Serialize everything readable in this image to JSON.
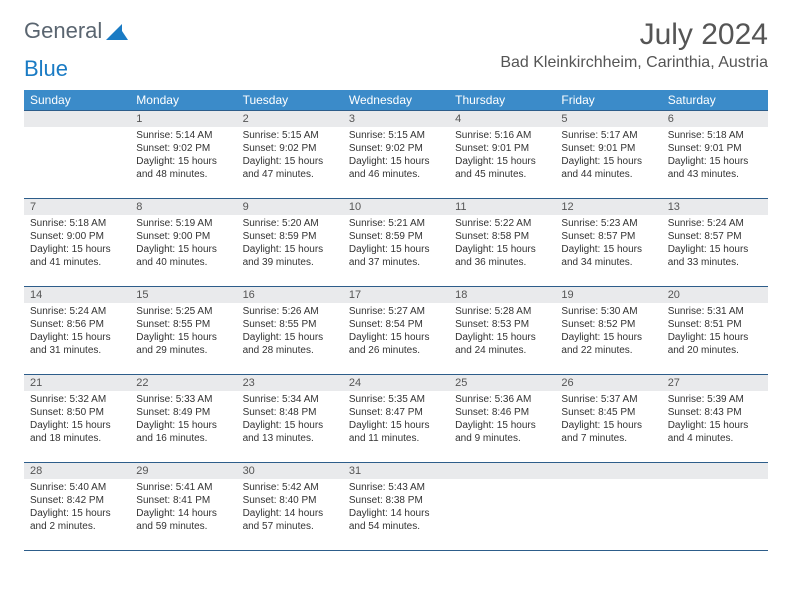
{
  "logo": {
    "text1": "General",
    "text2": "Blue"
  },
  "title": "July 2024",
  "location": "Bad Kleinkirchheim, Carinthia, Austria",
  "colors": {
    "header_bg": "#3b8bc9",
    "header_text": "#ffffff",
    "daynum_bg": "#e9eaec",
    "border": "#2d5d8a",
    "logo_gray": "#5a6570",
    "logo_blue": "#1a7bc4"
  },
  "weekdays": [
    "Sunday",
    "Monday",
    "Tuesday",
    "Wednesday",
    "Thursday",
    "Friday",
    "Saturday"
  ],
  "weeks": [
    {
      "nums": [
        "",
        "1",
        "2",
        "3",
        "4",
        "5",
        "6"
      ],
      "cells": [
        null,
        {
          "sr": "5:14 AM",
          "ss": "9:02 PM",
          "dl": "15 hours and 48 minutes."
        },
        {
          "sr": "5:15 AM",
          "ss": "9:02 PM",
          "dl": "15 hours and 47 minutes."
        },
        {
          "sr": "5:15 AM",
          "ss": "9:02 PM",
          "dl": "15 hours and 46 minutes."
        },
        {
          "sr": "5:16 AM",
          "ss": "9:01 PM",
          "dl": "15 hours and 45 minutes."
        },
        {
          "sr": "5:17 AM",
          "ss": "9:01 PM",
          "dl": "15 hours and 44 minutes."
        },
        {
          "sr": "5:18 AM",
          "ss": "9:01 PM",
          "dl": "15 hours and 43 minutes."
        }
      ]
    },
    {
      "nums": [
        "7",
        "8",
        "9",
        "10",
        "11",
        "12",
        "13"
      ],
      "cells": [
        {
          "sr": "5:18 AM",
          "ss": "9:00 PM",
          "dl": "15 hours and 41 minutes."
        },
        {
          "sr": "5:19 AM",
          "ss": "9:00 PM",
          "dl": "15 hours and 40 minutes."
        },
        {
          "sr": "5:20 AM",
          "ss": "8:59 PM",
          "dl": "15 hours and 39 minutes."
        },
        {
          "sr": "5:21 AM",
          "ss": "8:59 PM",
          "dl": "15 hours and 37 minutes."
        },
        {
          "sr": "5:22 AM",
          "ss": "8:58 PM",
          "dl": "15 hours and 36 minutes."
        },
        {
          "sr": "5:23 AM",
          "ss": "8:57 PM",
          "dl": "15 hours and 34 minutes."
        },
        {
          "sr": "5:24 AM",
          "ss": "8:57 PM",
          "dl": "15 hours and 33 minutes."
        }
      ]
    },
    {
      "nums": [
        "14",
        "15",
        "16",
        "17",
        "18",
        "19",
        "20"
      ],
      "cells": [
        {
          "sr": "5:24 AM",
          "ss": "8:56 PM",
          "dl": "15 hours and 31 minutes."
        },
        {
          "sr": "5:25 AM",
          "ss": "8:55 PM",
          "dl": "15 hours and 29 minutes."
        },
        {
          "sr": "5:26 AM",
          "ss": "8:55 PM",
          "dl": "15 hours and 28 minutes."
        },
        {
          "sr": "5:27 AM",
          "ss": "8:54 PM",
          "dl": "15 hours and 26 minutes."
        },
        {
          "sr": "5:28 AM",
          "ss": "8:53 PM",
          "dl": "15 hours and 24 minutes."
        },
        {
          "sr": "5:30 AM",
          "ss": "8:52 PM",
          "dl": "15 hours and 22 minutes."
        },
        {
          "sr": "5:31 AM",
          "ss": "8:51 PM",
          "dl": "15 hours and 20 minutes."
        }
      ]
    },
    {
      "nums": [
        "21",
        "22",
        "23",
        "24",
        "25",
        "26",
        "27"
      ],
      "cells": [
        {
          "sr": "5:32 AM",
          "ss": "8:50 PM",
          "dl": "15 hours and 18 minutes."
        },
        {
          "sr": "5:33 AM",
          "ss": "8:49 PM",
          "dl": "15 hours and 16 minutes."
        },
        {
          "sr": "5:34 AM",
          "ss": "8:48 PM",
          "dl": "15 hours and 13 minutes."
        },
        {
          "sr": "5:35 AM",
          "ss": "8:47 PM",
          "dl": "15 hours and 11 minutes."
        },
        {
          "sr": "5:36 AM",
          "ss": "8:46 PM",
          "dl": "15 hours and 9 minutes."
        },
        {
          "sr": "5:37 AM",
          "ss": "8:45 PM",
          "dl": "15 hours and 7 minutes."
        },
        {
          "sr": "5:39 AM",
          "ss": "8:43 PM",
          "dl": "15 hours and 4 minutes."
        }
      ]
    },
    {
      "nums": [
        "28",
        "29",
        "30",
        "31",
        "",
        "",
        ""
      ],
      "cells": [
        {
          "sr": "5:40 AM",
          "ss": "8:42 PM",
          "dl": "15 hours and 2 minutes."
        },
        {
          "sr": "5:41 AM",
          "ss": "8:41 PM",
          "dl": "14 hours and 59 minutes."
        },
        {
          "sr": "5:42 AM",
          "ss": "8:40 PM",
          "dl": "14 hours and 57 minutes."
        },
        {
          "sr": "5:43 AM",
          "ss": "8:38 PM",
          "dl": "14 hours and 54 minutes."
        },
        null,
        null,
        null
      ]
    }
  ],
  "labels": {
    "sunrise": "Sunrise:",
    "sunset": "Sunset:",
    "daylight": "Daylight:"
  }
}
